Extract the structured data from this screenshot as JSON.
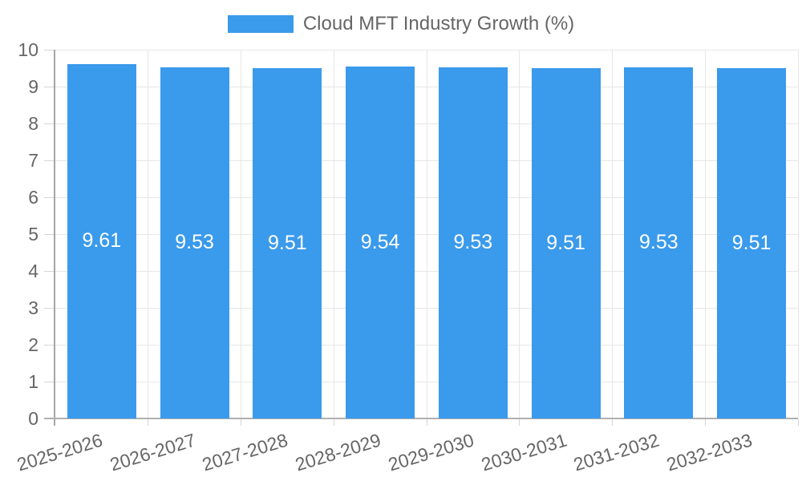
{
  "legend": {
    "label": "Cloud MFT Industry Growth (%)"
  },
  "chart_data": {
    "type": "bar",
    "title": "Cloud MFT Industry Growth (%)",
    "series_name": "Cloud MFT Industry Growth (%)",
    "categories": [
      "2025-2026",
      "2026-2027",
      "2027-2028",
      "2028-2029",
      "2029-2030",
      "2030-2031",
      "2031-2032",
      "2032-2033"
    ],
    "values": [
      9.61,
      9.53,
      9.51,
      9.54,
      9.53,
      9.51,
      9.53,
      9.51
    ],
    "value_labels": [
      "9.61",
      "9.53",
      "9.51",
      "9.54",
      "9.53",
      "9.51",
      "9.53",
      "9.51"
    ],
    "xlabel": "",
    "ylabel": "",
    "ylim": [
      0,
      10
    ],
    "y_ticks": [
      0,
      1,
      2,
      3,
      4,
      5,
      6,
      7,
      8,
      9,
      10
    ],
    "grid": "on",
    "legend_position": "top-center",
    "x_label_rotation_deg": -17,
    "bar_color": "#3a9aec",
    "value_label_color": "#ffffff",
    "axis_text_color": "#666666"
  }
}
